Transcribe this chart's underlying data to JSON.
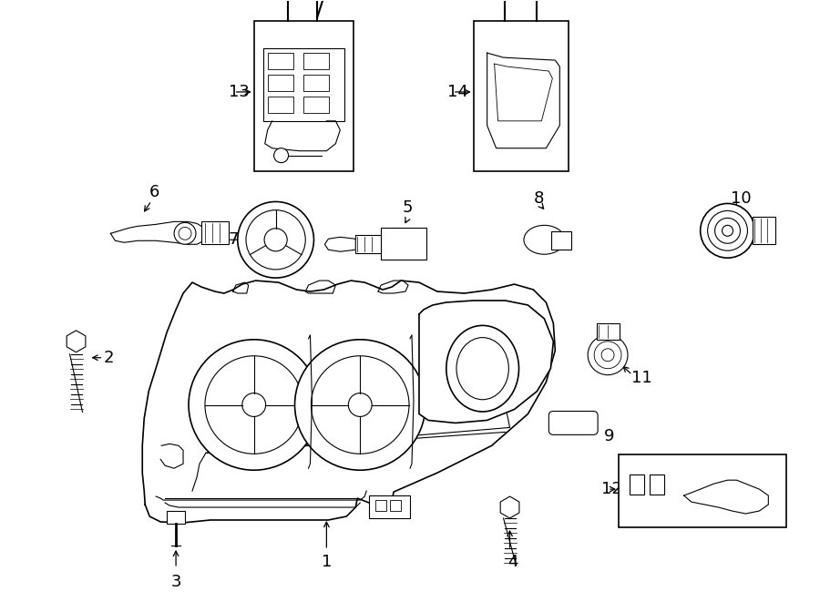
{
  "bg_color": "#ffffff",
  "line_color": "#000000",
  "text_color": "#000000",
  "fig_width": 9.0,
  "fig_height": 6.61
}
